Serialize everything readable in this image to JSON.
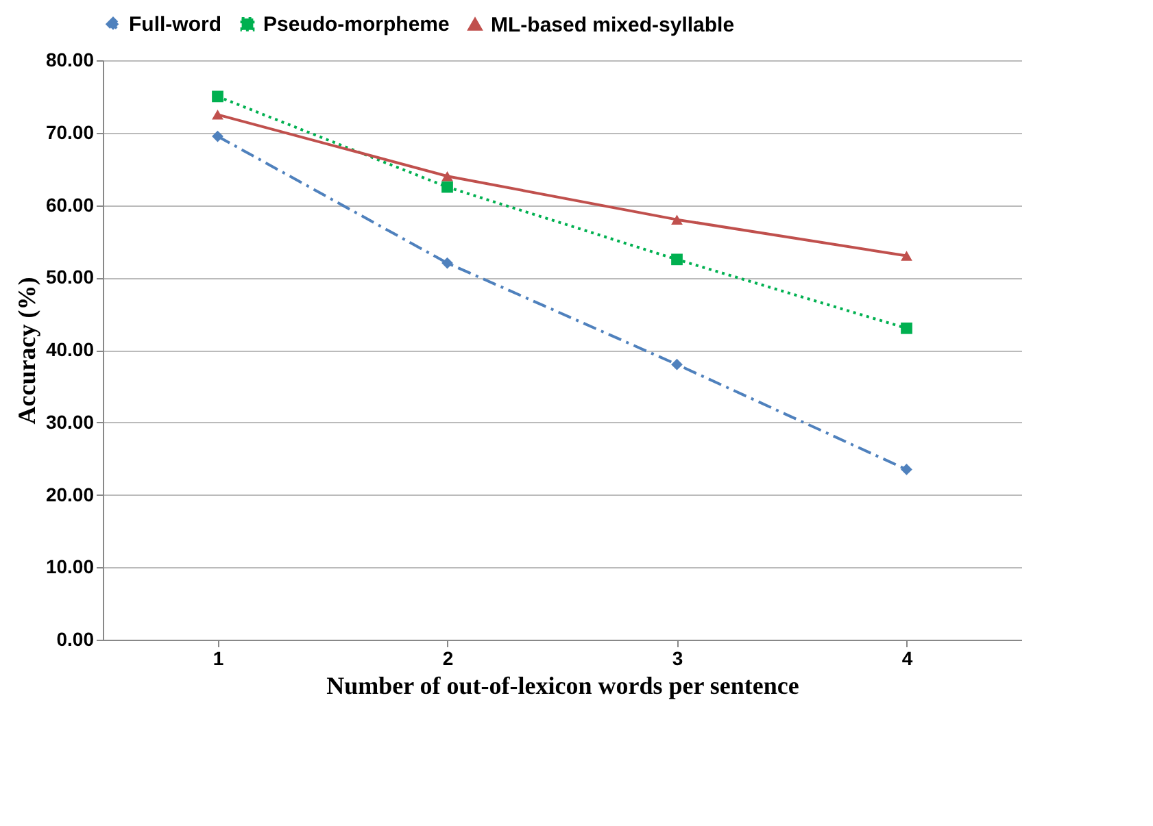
{
  "chart_data": {
    "type": "line",
    "xlabel": "Number of out-of-lexicon words per sentence",
    "ylabel": "Accuracy (%)",
    "categories": [
      "1",
      "2",
      "3",
      "4"
    ],
    "series": [
      {
        "name": "Full-word",
        "color": "#4f81bd",
        "values": [
          69.5,
          52.0,
          38.0,
          23.5
        ],
        "marker": "diamond",
        "line_style": "dashed"
      },
      {
        "name": "Pseudo-morpheme",
        "color": "#00b050",
        "values": [
          75.0,
          62.5,
          52.5,
          43.0
        ],
        "marker": "square",
        "line_style": "dotted"
      },
      {
        "name": "ML-based mixed-syllable",
        "color": "#c0504d",
        "values": [
          72.5,
          64.0,
          58.0,
          53.0
        ],
        "marker": "triangle",
        "line_style": "solid"
      }
    ],
    "ylim": [
      0,
      80
    ],
    "yticks": [
      {
        "value": 0,
        "label": "0.00"
      },
      {
        "value": 10,
        "label": "10.00"
      },
      {
        "value": 20,
        "label": "20.00"
      },
      {
        "value": 30,
        "label": "30.00"
      },
      {
        "value": 40,
        "label": "40.00"
      },
      {
        "value": 50,
        "label": "50.00"
      },
      {
        "value": 60,
        "label": "60.00"
      },
      {
        "value": 70,
        "label": "70.00"
      },
      {
        "value": 80,
        "label": "80.00"
      }
    ],
    "grid": "y",
    "legend": "top"
  }
}
